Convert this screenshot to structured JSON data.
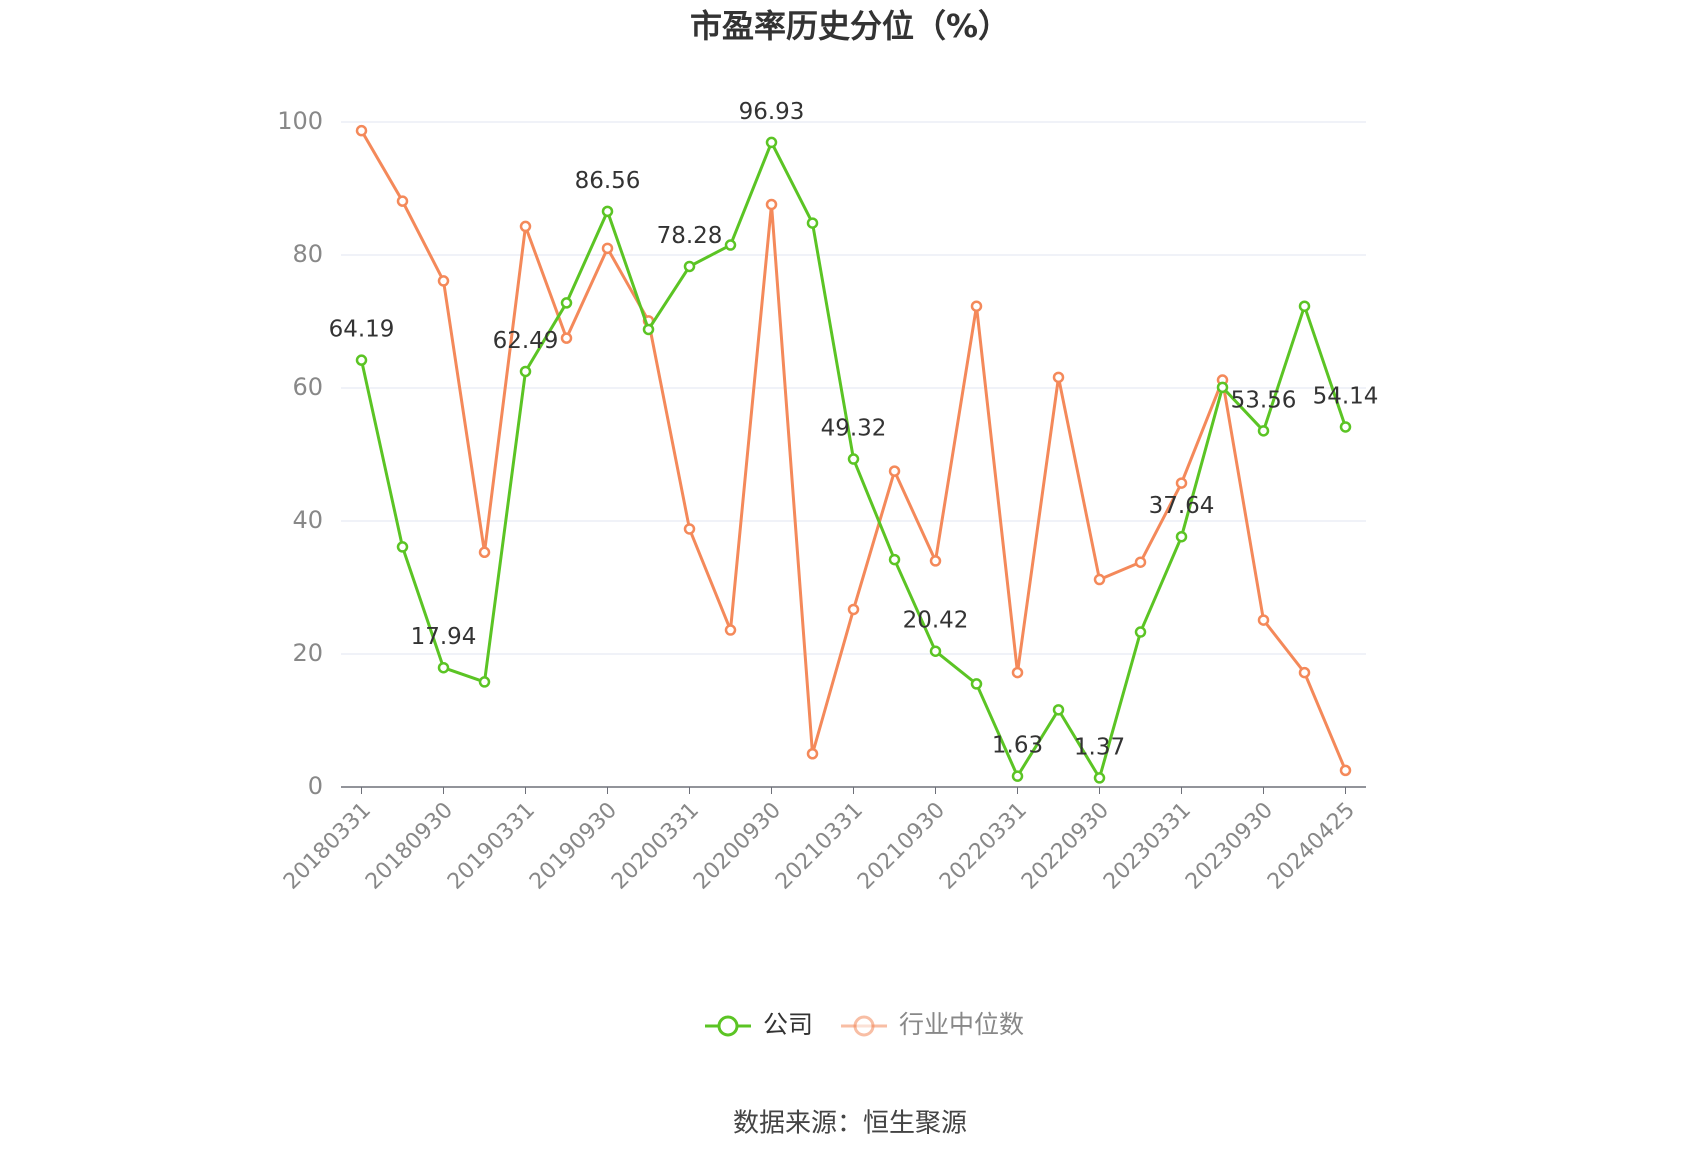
{
  "chart_data": {
    "type": "line",
    "title": "市盈率历史分位（%）",
    "categories": [
      "20180331",
      null,
      "20180930",
      null,
      "20190331",
      null,
      "20190930",
      null,
      "20200331",
      null,
      "20200930",
      null,
      "20210331",
      null,
      "20210930",
      null,
      "20220331",
      null,
      "20220930",
      null,
      "20230331",
      null,
      "20230930",
      null,
      "20240425"
    ],
    "series": [
      {
        "name": "公司",
        "color": "#5bc424",
        "values": [
          64.19,
          36.1,
          17.94,
          15.8,
          62.49,
          72.8,
          86.56,
          68.8,
          78.28,
          81.5,
          96.93,
          84.8,
          49.32,
          34.2,
          20.42,
          15.5,
          1.63,
          11.6,
          1.37,
          23.3,
          37.64,
          60.1,
          53.56,
          72.3,
          54.14
        ]
      },
      {
        "name": "行业中位数",
        "color": "#f4895a",
        "values": [
          98.7,
          88.1,
          76.1,
          35.3,
          84.3,
          67.5,
          81.0,
          70.1,
          38.8,
          23.6,
          87.6,
          5.0,
          26.7,
          47.5,
          34.0,
          72.3,
          17.2,
          61.6,
          31.2,
          33.8,
          45.7,
          61.2,
          25.1,
          17.2,
          2.5
        ]
      }
    ],
    "ylim": [
      0,
      100
    ],
    "yticks": [
      0,
      20,
      40,
      60,
      80,
      100
    ],
    "grid": true,
    "source": "数据来源：恒生聚源"
  }
}
